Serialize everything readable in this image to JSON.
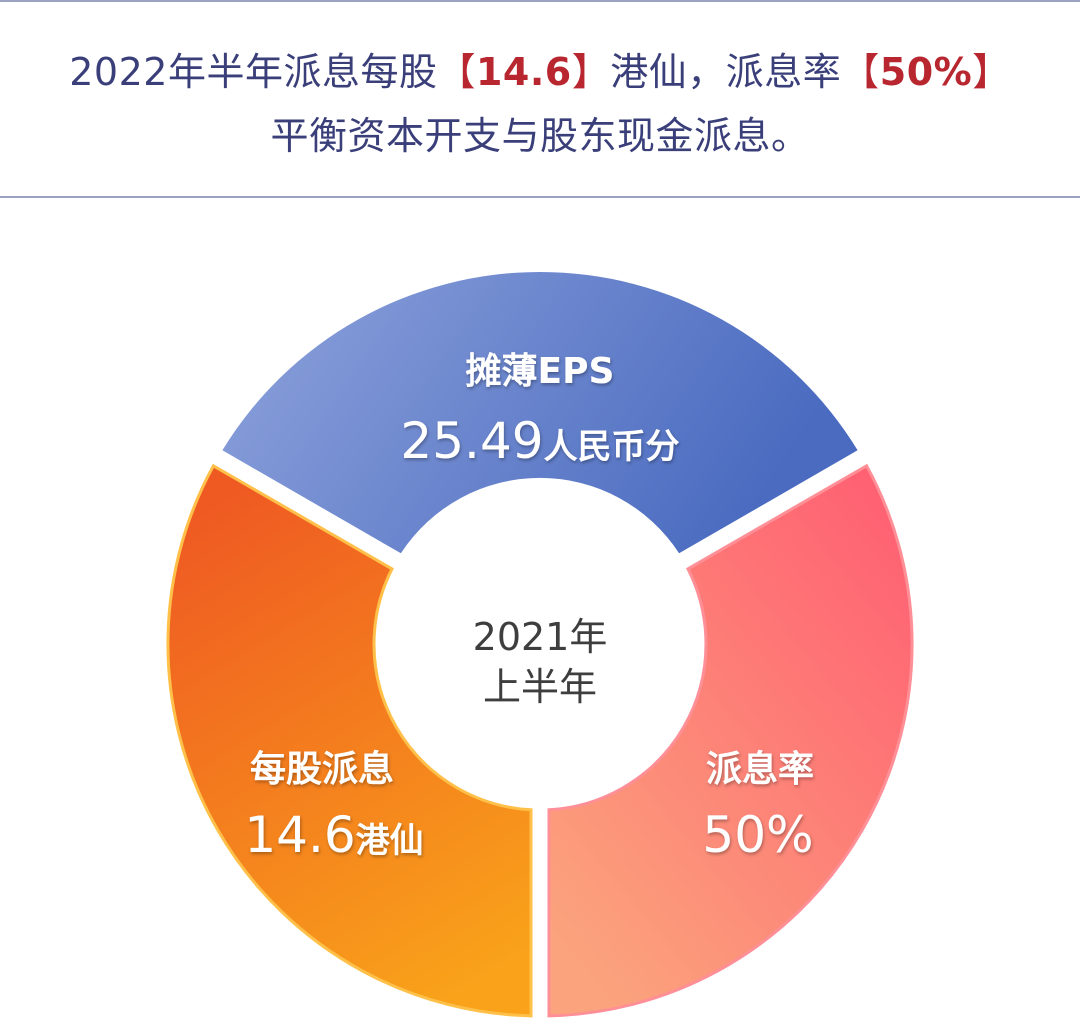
{
  "headline": {
    "prefix": "2022年半年派息每股",
    "bracket_open": "【",
    "dividend_value": "14.6",
    "bracket_close": "】",
    "mid": "港仙，派息率",
    "payout_value": "50%",
    "subline": "平衡资本开支与股东现金派息。"
  },
  "center": {
    "line1": "2021年",
    "line2": "上半年"
  },
  "segments": [
    {
      "id": "eps",
      "title": "摊薄EPS",
      "value": "25.49",
      "unit": "人民币分",
      "colors": [
        "#8fa3dc",
        "#4a6bc0"
      ]
    },
    {
      "id": "payout",
      "title": "派息率",
      "value": "50%",
      "unit": "",
      "colors": [
        "#ff5c72",
        "#fba37c"
      ]
    },
    {
      "id": "dps",
      "title": "每股派息",
      "value": "14.6",
      "unit": "港仙",
      "colors": [
        "#ef5a22",
        "#f9a21a"
      ]
    }
  ]
}
